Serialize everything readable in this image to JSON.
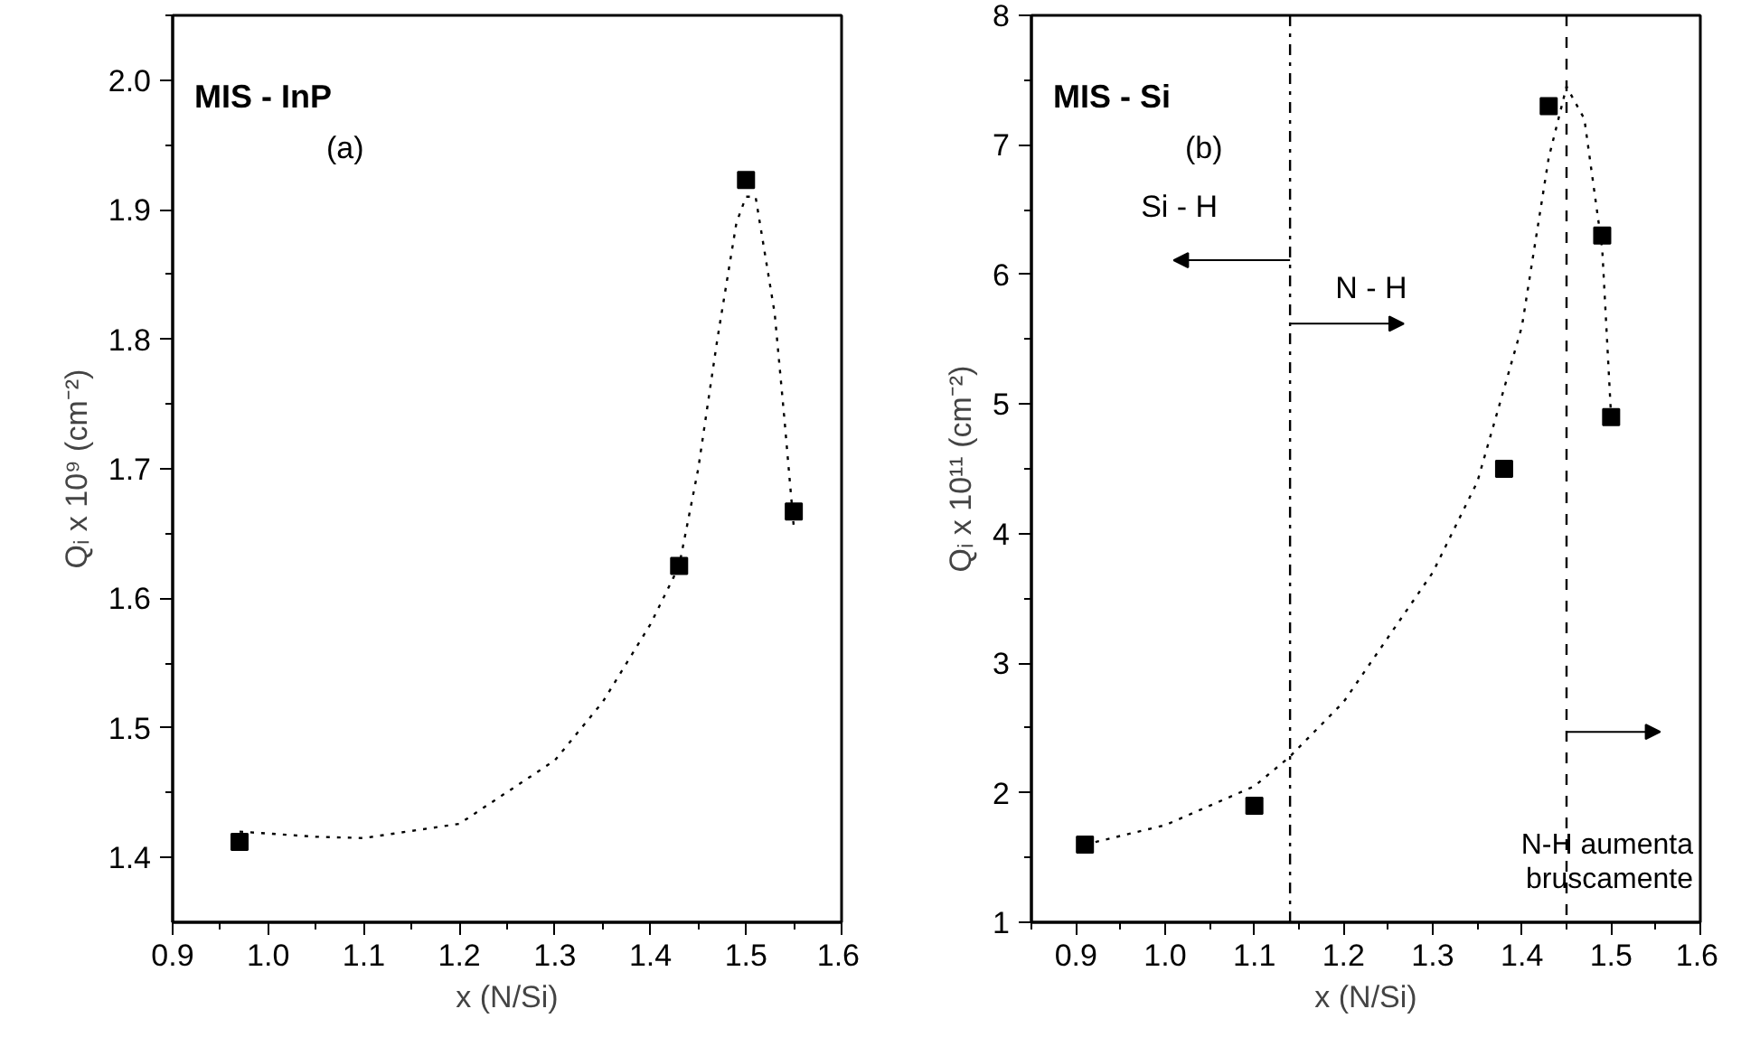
{
  "chart_data": [
    {
      "type": "scatter",
      "title": "MIS - InP",
      "subtitle": "(a)",
      "xlabel": "x (N/Si)",
      "ylabel": "Qᵢ x 10⁹ (cm⁻²)",
      "xlim": [
        0.9,
        1.6
      ],
      "xticks": [
        {
          "value": 0.9,
          "label": "0.9"
        },
        {
          "value": 1.0,
          "label": "1.0"
        },
        {
          "value": 1.1,
          "label": "1.1"
        },
        {
          "value": 1.2,
          "label": "1.2"
        },
        {
          "value": 1.3,
          "label": "1.3"
        },
        {
          "value": 1.4,
          "label": "1.4"
        },
        {
          "value": 1.5,
          "label": "1.5"
        },
        {
          "value": 1.6,
          "label": "1.6"
        }
      ],
      "ylim": [
        1.35,
        2.05
      ],
      "yticks": [
        {
          "value": 1.4,
          "label": "1.4"
        },
        {
          "value": 1.5,
          "label": "1.5"
        },
        {
          "value": 1.6,
          "label": "1.6"
        },
        {
          "value": 1.7,
          "label": "1.7"
        },
        {
          "value": 1.8,
          "label": "1.8"
        },
        {
          "value": 1.9,
          "label": "1.9"
        },
        {
          "value": 2.0,
          "label": "2.0"
        }
      ],
      "grid": false,
      "series": [
        {
          "marker": "square",
          "color": "#000000",
          "x": [
            0.97,
            1.43,
            1.5,
            1.55
          ],
          "values": [
            1.412,
            1.625,
            1.923,
            1.667
          ]
        },
        {
          "type": "line",
          "marker": "none",
          "line_style": "dotted",
          "color": "#000000",
          "x": [
            0.97,
            1.05,
            1.1,
            1.2,
            1.3,
            1.35,
            1.4,
            1.43,
            1.45,
            1.47,
            1.49,
            1.5,
            1.51,
            1.53,
            1.54,
            1.55
          ],
          "values": [
            1.42,
            1.416,
            1.415,
            1.426,
            1.475,
            1.52,
            1.58,
            1.625,
            1.7,
            1.8,
            1.89,
            1.91,
            1.91,
            1.82,
            1.74,
            1.655
          ]
        }
      ]
    },
    {
      "type": "scatter",
      "title": "MIS - Si",
      "subtitle": "(b)",
      "xlabel": "x (N/Si)",
      "ylabel": "Qᵢ x 10¹¹ (cm⁻²)",
      "xlim": [
        0.85,
        1.6
      ],
      "xticks": [
        {
          "value": 0.9,
          "label": "0.9"
        },
        {
          "value": 1.0,
          "label": "1.0"
        },
        {
          "value": 1.1,
          "label": "1.1"
        },
        {
          "value": 1.2,
          "label": "1.2"
        },
        {
          "value": 1.3,
          "label": "1.3"
        },
        {
          "value": 1.4,
          "label": "1.4"
        },
        {
          "value": 1.5,
          "label": "1.5"
        },
        {
          "value": 1.6,
          "label": "1.6"
        }
      ],
      "ylim": [
        1,
        8
      ],
      "yticks": [
        1,
        2,
        3,
        4,
        5,
        6,
        7,
        8
      ],
      "grid": false,
      "series": [
        {
          "marker": "square",
          "color": "#000000",
          "x": [
            0.91,
            1.1,
            1.38,
            1.43,
            1.49,
            1.5
          ],
          "values": [
            1.6,
            1.9,
            4.5,
            7.3,
            6.3,
            4.9
          ]
        },
        {
          "type": "line",
          "marker": "none",
          "line_style": "dotted",
          "color": "#000000",
          "x": [
            0.91,
            1.0,
            1.1,
            1.14,
            1.2,
            1.3,
            1.35,
            1.4,
            1.43,
            1.45,
            1.47,
            1.49,
            1.5
          ],
          "values": [
            1.6,
            1.75,
            2.05,
            2.28,
            2.7,
            3.7,
            4.4,
            5.6,
            6.9,
            7.45,
            7.2,
            6.2,
            4.9
          ]
        }
      ],
      "ref_lines": [
        {
          "axis": "x",
          "value": 1.14,
          "line_style": "dashdot",
          "color": "#000000"
        },
        {
          "axis": "x",
          "value": 1.45,
          "line_style": "dashed",
          "color": "#000000"
        }
      ],
      "annotations": [
        "Si - H",
        "N - H",
        "N-H aumenta\nbruscamente"
      ]
    }
  ]
}
